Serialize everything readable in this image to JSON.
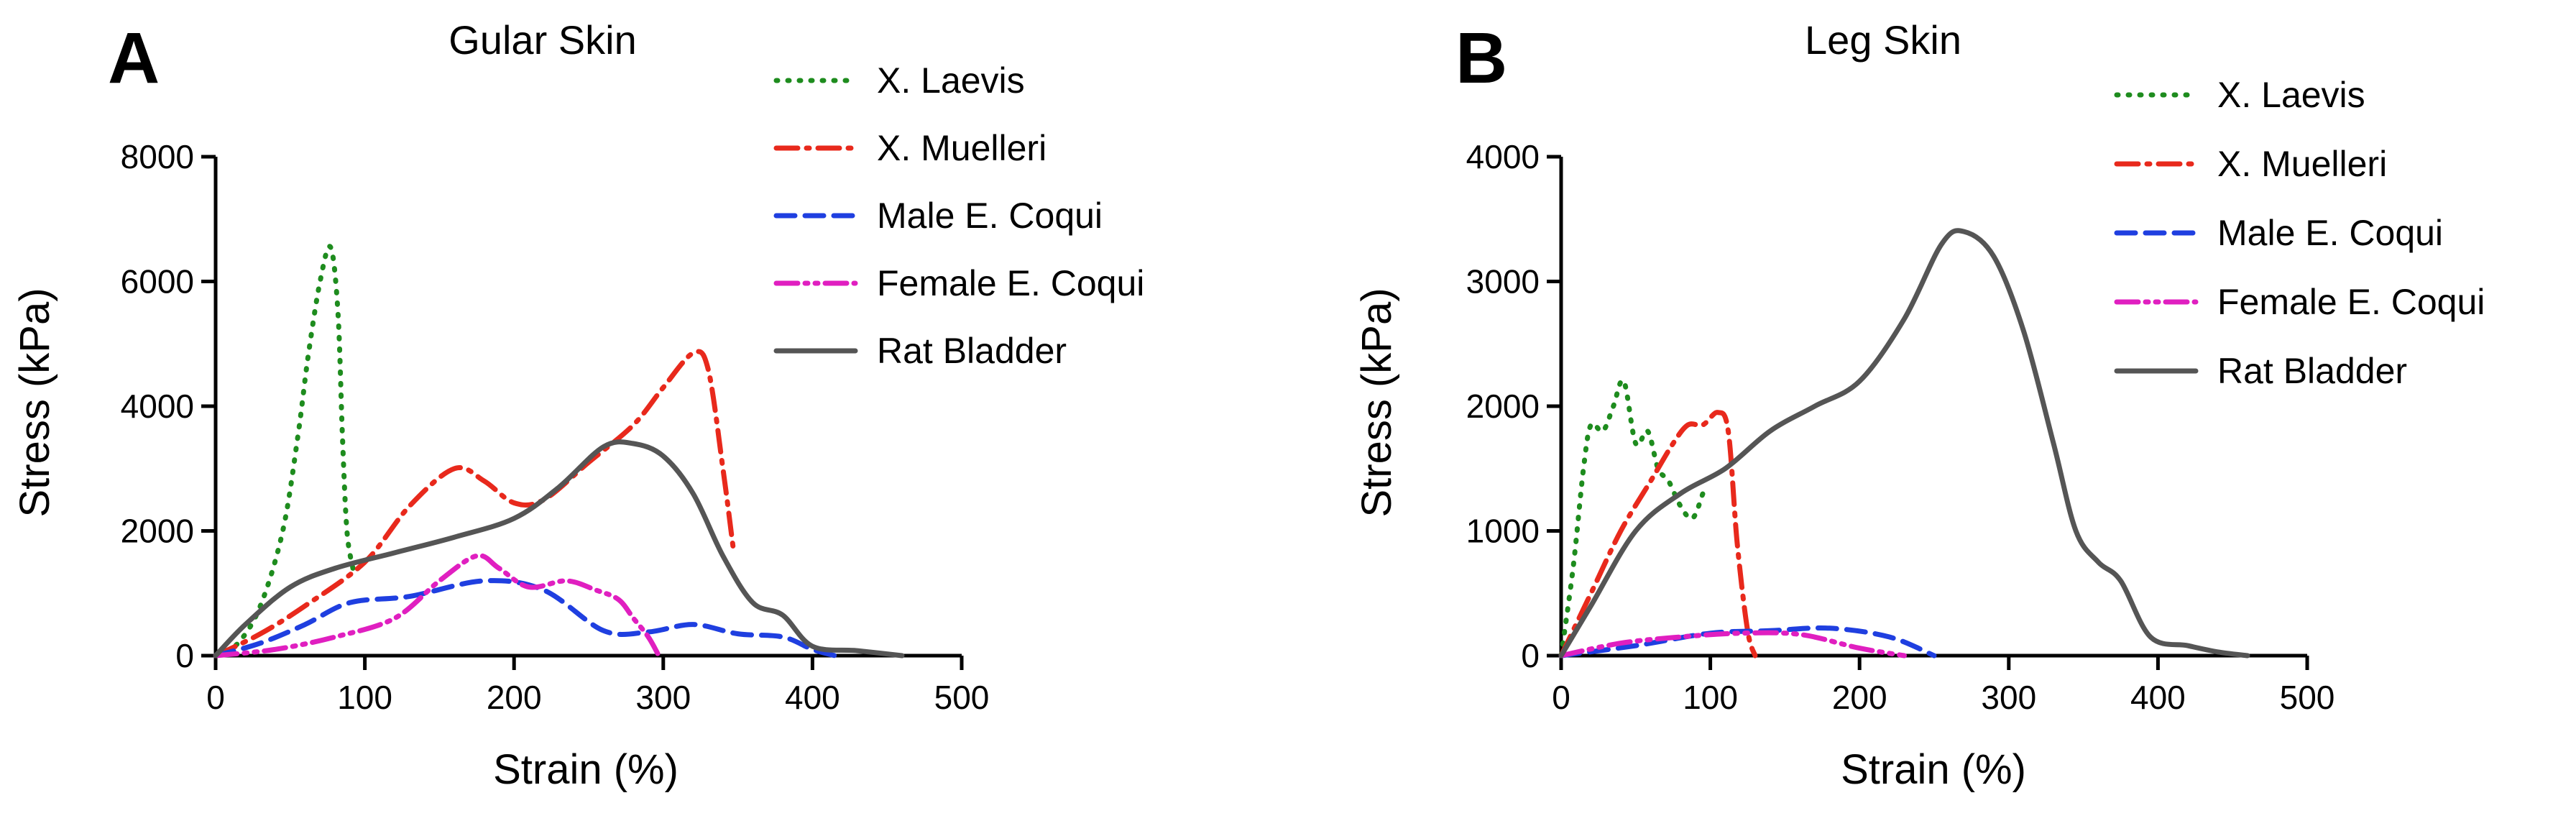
{
  "chart_data": [
    {
      "type": "line",
      "panel": "A",
      "title": "Gular Skin",
      "xlabel": "Strain (%)",
      "ylabel": "Stress (kPa)",
      "xlim": [
        0,
        500
      ],
      "ylim": [
        0,
        8000
      ],
      "xticks": [
        0,
        100,
        200,
        300,
        400,
        500
      ],
      "yticks": [
        0,
        2000,
        4000,
        6000,
        8000
      ],
      "legend_position": "top-right",
      "series": [
        {
          "name": "X. Laevis",
          "color": "#1e8c1e",
          "style": "dotted",
          "x": [
            0,
            15,
            30,
            45,
            55,
            62,
            70,
            77,
            82,
            85,
            88,
            92
          ],
          "y": [
            0,
            200,
            800,
            2000,
            3500,
            4800,
            6000,
            6550,
            5500,
            3500,
            2000,
            1400
          ]
        },
        {
          "name": "X. Muelleri",
          "color": "#e8291c",
          "style": "dashdot",
          "x": [
            0,
            30,
            60,
            100,
            130,
            160,
            180,
            200,
            220,
            250,
            280,
            300,
            320,
            330,
            340,
            347
          ],
          "y": [
            0,
            350,
            800,
            1500,
            2400,
            3000,
            2800,
            2450,
            2500,
            3100,
            3700,
            4300,
            4850,
            4600,
            3000,
            1700
          ]
        },
        {
          "name": "Male E. Coqui",
          "color": "#1f3fe0",
          "style": "dashed",
          "x": [
            0,
            30,
            60,
            90,
            130,
            180,
            220,
            260,
            290,
            320,
            350,
            380,
            400,
            415
          ],
          "y": [
            0,
            200,
            500,
            850,
            950,
            1200,
            1050,
            400,
            380,
            500,
            350,
            300,
            100,
            0
          ]
        },
        {
          "name": "Female E. Coqui",
          "color": "#e01fc0",
          "style": "dashdotdot",
          "x": [
            0,
            40,
            80,
            120,
            150,
            175,
            190,
            210,
            235,
            255,
            270,
            280,
            290,
            297
          ],
          "y": [
            0,
            100,
            300,
            600,
            1200,
            1600,
            1400,
            1100,
            1200,
            1050,
            900,
            600,
            300,
            0
          ]
        },
        {
          "name": "Rat Bladder",
          "color": "#555555",
          "style": "solid",
          "x": [
            0,
            20,
            50,
            80,
            120,
            160,
            200,
            230,
            260,
            280,
            300,
            320,
            340,
            360,
            380,
            400,
            430,
            460
          ],
          "y": [
            0,
            500,
            1100,
            1400,
            1650,
            1900,
            2200,
            2700,
            3350,
            3400,
            3200,
            2600,
            1600,
            850,
            650,
            150,
            80,
            0
          ]
        }
      ]
    },
    {
      "type": "line",
      "panel": "B",
      "title": "Leg Skin",
      "xlabel": "Strain (%)",
      "ylabel": "Stress (kPa)",
      "xlim": [
        0,
        500
      ],
      "ylim": [
        0,
        4000
      ],
      "xticks": [
        0,
        100,
        200,
        300,
        400,
        500
      ],
      "yticks": [
        0,
        1000,
        2000,
        3000,
        4000
      ],
      "legend_position": "top-right",
      "series": [
        {
          "name": "X. Laevis",
          "color": "#1e8c1e",
          "style": "dotted",
          "x": [
            0,
            8,
            15,
            20,
            28,
            35,
            42,
            50,
            58,
            65,
            72,
            80,
            88,
            95
          ],
          "y": [
            0,
            700,
            1500,
            1850,
            1800,
            2000,
            2200,
            1700,
            1800,
            1500,
            1400,
            1200,
            1100,
            1300
          ]
        },
        {
          "name": "X. Muelleri",
          "color": "#e8291c",
          "style": "dashdot",
          "x": [
            0,
            20,
            40,
            60,
            75,
            85,
            95,
            105,
            112,
            118,
            125,
            130
          ],
          "y": [
            0,
            500,
            1000,
            1400,
            1700,
            1850,
            1850,
            1950,
            1800,
            900,
            200,
            0
          ]
        },
        {
          "name": "Male E. Coqui",
          "color": "#1f3fe0",
          "style": "dashed",
          "x": [
            0,
            50,
            100,
            140,
            180,
            220,
            250
          ],
          "y": [
            0,
            80,
            180,
            200,
            220,
            150,
            0
          ]
        },
        {
          "name": "Female E. Coqui",
          "color": "#e01fc0",
          "style": "dashdotdot",
          "x": [
            0,
            40,
            80,
            120,
            160,
            200,
            230
          ],
          "y": [
            0,
            100,
            150,
            180,
            170,
            60,
            0
          ]
        },
        {
          "name": "Rat Bladder",
          "color": "#555555",
          "style": "solid",
          "x": [
            0,
            20,
            50,
            80,
            110,
            140,
            170,
            200,
            230,
            255,
            270,
            290,
            310,
            330,
            345,
            360,
            375,
            395,
            420,
            440,
            460
          ],
          "y": [
            0,
            400,
            1000,
            1300,
            1500,
            1800,
            2000,
            2200,
            2700,
            3300,
            3400,
            3200,
            2600,
            1700,
            1000,
            750,
            600,
            150,
            80,
            30,
            0
          ]
        }
      ]
    }
  ]
}
